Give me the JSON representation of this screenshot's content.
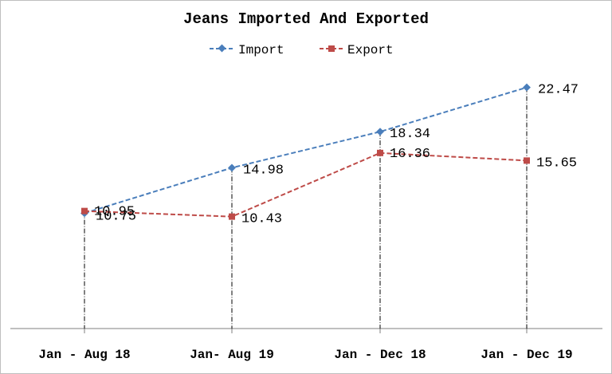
{
  "chart_data": {
    "type": "line",
    "title": "Jeans Imported And Exported",
    "xlabel": "",
    "ylabel": "",
    "categories": [
      "Jan - Aug 18",
      "Jan- Aug 19",
      "Jan - Dec 18",
      "Jan - Dec 19"
    ],
    "series": [
      {
        "name": "Import",
        "values": [
          10.75,
          14.98,
          18.34,
          22.47
        ],
        "color": "#4a7ebb",
        "marker": "diamond",
        "line_style": "dashed"
      },
      {
        "name": "Export",
        "values": [
          10.95,
          10.43,
          16.36,
          15.65
        ],
        "color": "#be4b48",
        "marker": "square",
        "line_style": "dashed"
      }
    ],
    "ylim": [
      0,
      24
    ],
    "grid": false,
    "drop_lines": true,
    "legend_position": "top"
  }
}
